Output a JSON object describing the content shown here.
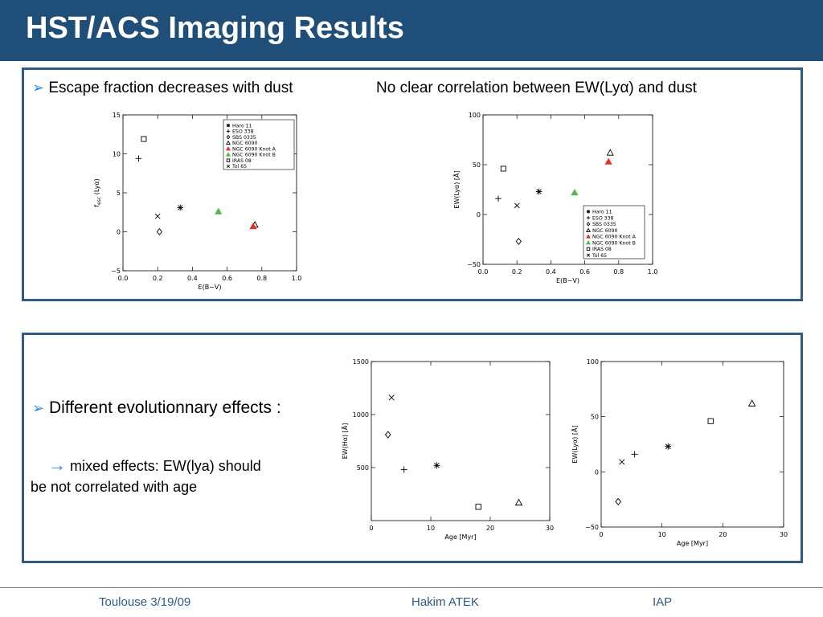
{
  "title": "HST/ACS Imaging Results",
  "panel1": {
    "bullet_left": "Escape fraction decreases with dust",
    "note_right_pre": "No clear correlation between EW(Ly",
    "note_right_alpha": "α",
    "note_right_post": ") and dust"
  },
  "panel2": {
    "bullet": "Different evolutionnary effects :",
    "sub_line1": "mixed effects: EW(lya) should",
    "sub_line2": "be not correlated with age"
  },
  "footer": {
    "left": "Toulouse 3/19/09",
    "center": "Hakim ATEK",
    "right": "IAP"
  },
  "colors": {
    "header": "#1f4e79",
    "border": "#2e5a88",
    "bullet": "#2e86de",
    "red": "#e0312b",
    "green": "#4db84d"
  },
  "chart_data": [
    {
      "type": "scatter",
      "id": "fesc-ebv",
      "xlabel": "E(B−V)",
      "ylabel_main": "f",
      "ylabel_sub": "esc",
      "ylabel_tail": " (Lyα)",
      "xlim": [
        0,
        1.0
      ],
      "ylim": [
        -5,
        15
      ],
      "xticks": [
        "0.0",
        "0.2",
        "0.4",
        "0.6",
        "0.8",
        "1.0"
      ],
      "xtickvals": [
        0,
        0.2,
        0.4,
        0.6,
        0.8,
        1.0
      ],
      "yticks": [
        "−5",
        "0",
        "5",
        "10",
        "15"
      ],
      "ytickvals": [
        -5,
        0,
        5,
        10,
        15
      ],
      "legend": "top-right",
      "legend_entries": [
        {
          "marker": "asterisk",
          "label": "Haro 11"
        },
        {
          "marker": "plus",
          "label": "ESO 338"
        },
        {
          "marker": "diamond",
          "label": "SBS 0335"
        },
        {
          "marker": "triangle",
          "label": "NGC 6090"
        },
        {
          "marker": "triangle-red",
          "label": "NGC 6090 Knot A"
        },
        {
          "marker": "triangle-green",
          "label": "NGC 6090 Knot B"
        },
        {
          "marker": "square",
          "label": "IRAS 08"
        },
        {
          "marker": "cross",
          "label": "Tol 65"
        }
      ],
      "points": [
        {
          "marker": "asterisk",
          "x": 0.33,
          "y": 3.1
        },
        {
          "marker": "plus",
          "x": 0.09,
          "y": 9.4
        },
        {
          "marker": "diamond",
          "x": 0.21,
          "y": 0.0
        },
        {
          "marker": "triangle",
          "x": 0.76,
          "y": 0.9
        },
        {
          "marker": "triangle-red",
          "x": 0.75,
          "y": 0.7
        },
        {
          "marker": "triangle-green",
          "x": 0.55,
          "y": 2.6
        },
        {
          "marker": "square",
          "x": 0.12,
          "y": 11.9
        },
        {
          "marker": "cross",
          "x": 0.2,
          "y": 2.0
        }
      ]
    },
    {
      "type": "scatter",
      "id": "ew-ebv",
      "xlabel": "E(B−V)",
      "ylabel": "EW(Lyα) [Å]",
      "xlim": [
        0,
        1.0
      ],
      "ylim": [
        -50,
        100
      ],
      "xticks": [
        "0.0",
        "0.2",
        "0.4",
        "0.6",
        "0.8",
        "1.0"
      ],
      "xtickvals": [
        0,
        0.2,
        0.4,
        0.6,
        0.8,
        1.0
      ],
      "yticks": [
        "−50",
        "0",
        "50",
        "100"
      ],
      "ytickvals": [
        -50,
        0,
        50,
        100
      ],
      "legend": "bottom-right",
      "legend_entries": [
        {
          "marker": "asterisk",
          "label": "Haro 11"
        },
        {
          "marker": "plus",
          "label": "ESO 338"
        },
        {
          "marker": "diamond",
          "label": "SBS 0335"
        },
        {
          "marker": "triangle",
          "label": "NGC 6090"
        },
        {
          "marker": "triangle-red",
          "label": "NGC 6090 Knot A"
        },
        {
          "marker": "triangle-green",
          "label": "NGC 6090 Knot B"
        },
        {
          "marker": "square",
          "label": "IRAS 08"
        },
        {
          "marker": "cross",
          "label": "Tol 65"
        }
      ],
      "points": [
        {
          "marker": "asterisk",
          "x": 0.33,
          "y": 23
        },
        {
          "marker": "plus",
          "x": 0.09,
          "y": 16
        },
        {
          "marker": "diamond",
          "x": 0.21,
          "y": -27
        },
        {
          "marker": "triangle",
          "x": 0.75,
          "y": 62
        },
        {
          "marker": "triangle-red",
          "x": 0.74,
          "y": 53
        },
        {
          "marker": "triangle-green",
          "x": 0.54,
          "y": 22
        },
        {
          "marker": "square",
          "x": 0.12,
          "y": 46
        },
        {
          "marker": "cross",
          "x": 0.2,
          "y": 9
        }
      ]
    },
    {
      "type": "scatter",
      "id": "ewha-age",
      "xlabel": "Age [Myr]",
      "ylabel": "EW(Hα) [Å]",
      "xlim": [
        0,
        30
      ],
      "ylim": [
        0,
        1500
      ],
      "xticks": [
        "0",
        "10",
        "20",
        "30"
      ],
      "xtickvals": [
        0,
        10,
        20,
        30
      ],
      "yticks": [
        "500",
        "1000",
        "1500"
      ],
      "ytickvals": [
        500,
        1000,
        1500
      ],
      "points": [
        {
          "marker": "cross",
          "x": 3.4,
          "y": 1160
        },
        {
          "marker": "diamond",
          "x": 2.8,
          "y": 810
        },
        {
          "marker": "plus",
          "x": 5.5,
          "y": 480
        },
        {
          "marker": "asterisk",
          "x": 11,
          "y": 520
        },
        {
          "marker": "square",
          "x": 18,
          "y": 130
        },
        {
          "marker": "triangle",
          "x": 24.8,
          "y": 170
        }
      ]
    },
    {
      "type": "scatter",
      "id": "ew-age",
      "xlabel": "Age [Myr]",
      "ylabel": "EW(Lyα) [Å]",
      "xlim": [
        0,
        30
      ],
      "ylim": [
        -50,
        100
      ],
      "xticks": [
        "0",
        "10",
        "20",
        "30"
      ],
      "xtickvals": [
        0,
        10,
        20,
        30
      ],
      "yticks": [
        "−50",
        "0",
        "50",
        "100"
      ],
      "ytickvals": [
        -50,
        0,
        50,
        100
      ],
      "points": [
        {
          "marker": "diamond",
          "x": 2.8,
          "y": -27
        },
        {
          "marker": "cross",
          "x": 3.4,
          "y": 9
        },
        {
          "marker": "plus",
          "x": 5.5,
          "y": 16
        },
        {
          "marker": "asterisk",
          "x": 11,
          "y": 23
        },
        {
          "marker": "square",
          "x": 18,
          "y": 46
        },
        {
          "marker": "triangle",
          "x": 24.8,
          "y": 62
        }
      ]
    }
  ]
}
